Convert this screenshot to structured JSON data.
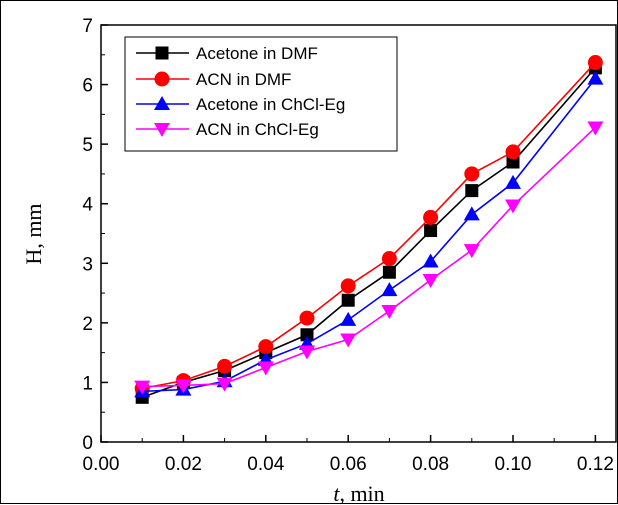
{
  "chart_data": {
    "type": "line",
    "xlabel_var": "t",
    "xlabel_unit": ", min",
    "ylabel": "H, mm",
    "xlim": [
      0.0,
      0.125
    ],
    "ylim": [
      0,
      7
    ],
    "xticks": [
      "0.00",
      "0.02",
      "0.04",
      "0.06",
      "0.08",
      "0.10",
      "0.12"
    ],
    "yticks": [
      "0",
      "1",
      "2",
      "3",
      "4",
      "5",
      "6",
      "7"
    ],
    "grid": false,
    "legend_position": "top-left",
    "series": [
      {
        "name": "Acetone in DMF",
        "color": "#000000",
        "marker": "square",
        "x": [
          0.01,
          0.02,
          0.03,
          0.04,
          0.05,
          0.06,
          0.07,
          0.08,
          0.09,
          0.1,
          0.12
        ],
        "y": [
          0.75,
          1.0,
          1.2,
          1.5,
          1.8,
          2.38,
          2.85,
          3.55,
          4.22,
          4.7,
          6.28
        ]
      },
      {
        "name": "ACN in DMF",
        "color": "#ff0000",
        "marker": "circle",
        "x": [
          0.01,
          0.02,
          0.03,
          0.04,
          0.05,
          0.06,
          0.07,
          0.08,
          0.09,
          0.1,
          0.12
        ],
        "y": [
          0.9,
          1.03,
          1.27,
          1.6,
          2.08,
          2.62,
          3.08,
          3.77,
          4.5,
          4.87,
          6.37
        ]
      },
      {
        "name": "Acetone in ChCl-Eg",
        "color": "#0000ff",
        "marker": "triangle-up",
        "x": [
          0.01,
          0.02,
          0.03,
          0.04,
          0.05,
          0.06,
          0.07,
          0.08,
          0.09,
          0.1,
          0.12
        ],
        "y": [
          0.85,
          0.88,
          1.02,
          1.38,
          1.65,
          2.05,
          2.55,
          3.03,
          3.82,
          4.35,
          6.1
        ]
      },
      {
        "name": "ACN in ChCl-Eg",
        "color": "#ff00ff",
        "marker": "triangle-down",
        "x": [
          0.01,
          0.02,
          0.03,
          0.04,
          0.05,
          0.06,
          0.07,
          0.08,
          0.09,
          0.1,
          0.12
        ],
        "y": [
          0.93,
          0.95,
          0.98,
          1.25,
          1.52,
          1.72,
          2.2,
          2.72,
          3.22,
          3.97,
          5.28
        ]
      }
    ]
  }
}
